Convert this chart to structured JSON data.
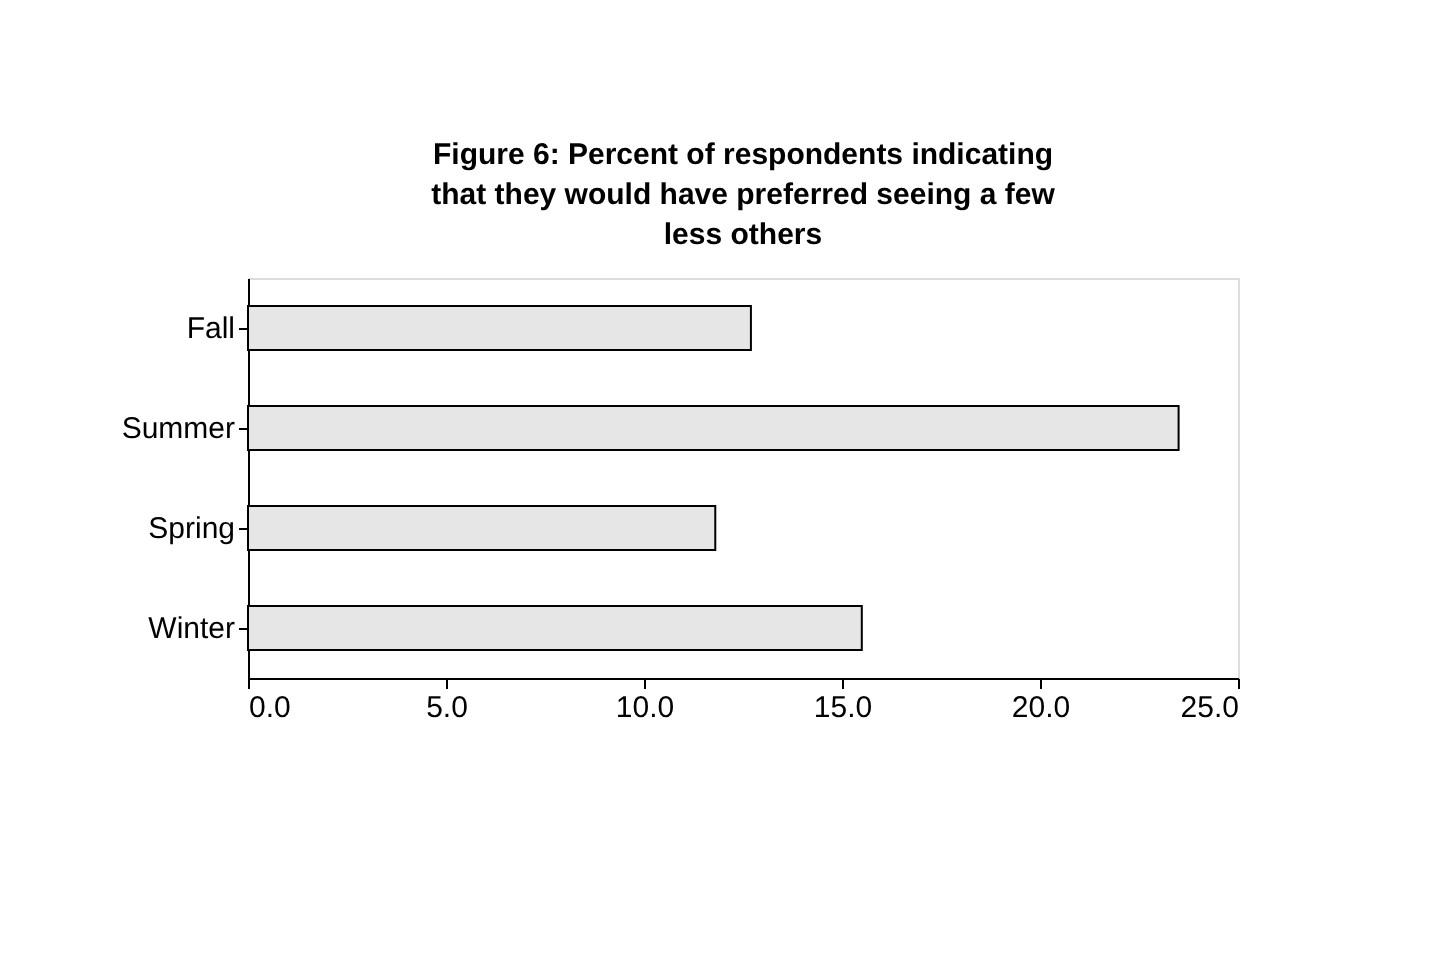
{
  "chart_data": {
    "type": "bar",
    "orientation": "horizontal",
    "title": "Figure 6:  Percent of respondents indicating that they would have preferred seeing a few less others",
    "categories": [
      "Fall",
      "Summer",
      "Spring",
      "Winter"
    ],
    "values": [
      12.7,
      23.5,
      11.8,
      15.5
    ],
    "color": "#e6e6e6",
    "xlim": [
      0,
      25
    ],
    "xticks": [
      {
        "value": 0,
        "label": "0.0"
      },
      {
        "value": 5,
        "label": "5.0"
      },
      {
        "value": 10,
        "label": "10.0"
      },
      {
        "value": 15,
        "label": "15.0"
      },
      {
        "value": 20,
        "label": "20.0"
      },
      {
        "value": 25,
        "label": "25.0"
      }
    ],
    "grid": false
  }
}
